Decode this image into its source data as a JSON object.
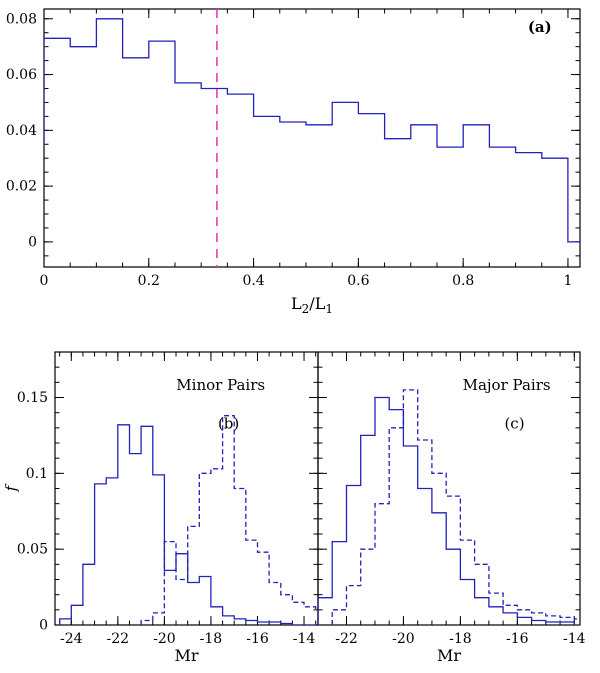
{
  "figure": {
    "background": "#ffffff",
    "frame_color": "#000000",
    "histogram_color": "#2222bb",
    "threshold_color": "#ee3bc0"
  },
  "chart_data": [
    {
      "id": "a",
      "type": "bar",
      "panel_label": "(a)",
      "xlabel": "L_2/L_1",
      "ylabel": "",
      "xlim": [
        0,
        1.023
      ],
      "ylim": [
        -0.009,
        0.0835
      ],
      "xticks": [
        0,
        0.2,
        0.4,
        0.6,
        0.8,
        1
      ],
      "xtick_labels": [
        "0",
        "0.2",
        "0.4",
        "0.6",
        "0.8",
        "1"
      ],
      "xminor": 0.05,
      "yticks": [
        0,
        0.02,
        0.04,
        0.06,
        0.08
      ],
      "ytick_labels": [
        "0",
        "0.02",
        "0.04",
        "0.06",
        "0.08"
      ],
      "yminor": 0.005,
      "grid": false,
      "series": [
        {
          "name": "luminosity-ratio-histogram",
          "style": "solid",
          "color": "#2222bb",
          "bin_start": 0,
          "bin_width": 0.05,
          "start_y": 0.034,
          "values": [
            0.073,
            0.07,
            0.08,
            0.066,
            0.072,
            0.057,
            0.055,
            0.053,
            0.045,
            0.043,
            0.042,
            0.05,
            0.046,
            0.037,
            0.042,
            0.034,
            0.042,
            0.034,
            0.032,
            0.03
          ]
        }
      ],
      "vline": {
        "x": 0.33,
        "color": "#ee3bc0",
        "style": "dashed"
      },
      "annotations": [
        {
          "text": "(a)",
          "fx": 0.925,
          "fy": 0.09,
          "bold": true
        }
      ]
    },
    {
      "id": "b",
      "type": "bar",
      "panel_label": "(b)",
      "xlabel": "Mr",
      "ylabel": "f",
      "xlim": [
        -24.7,
        -13.4
      ],
      "ylim": [
        0,
        0.18
      ],
      "xticks": [
        -24,
        -22,
        -20,
        -18,
        -16,
        -14
      ],
      "xtick_labels": [
        "-24",
        "-22",
        "-20",
        "-18",
        "-16",
        "-14"
      ],
      "xminor": 0.5,
      "yticks": [
        0,
        0.05,
        0.1,
        0.15
      ],
      "ytick_labels": [
        "0",
        "0.05",
        "0.1",
        "0.15"
      ],
      "yminor": 0.01,
      "grid": false,
      "series": [
        {
          "name": "solid-histogram",
          "style": "solid",
          "color": "#2222bb",
          "bin_start": -24.5,
          "bin_width": 0.5,
          "values": [
            0.004,
            0.013,
            0.04,
            0.093,
            0.097,
            0.132,
            0.113,
            0.131,
            0.099,
            0.036,
            0.047,
            0.028,
            0.032,
            0.012,
            0.006,
            0.004,
            0.003,
            0.002,
            0.002,
            0.001
          ]
        },
        {
          "name": "dashed-histogram",
          "style": "dashed",
          "color": "#2222bb",
          "bin_start": -21.0,
          "bin_width": 0.5,
          "values": [
            0.003,
            0.008,
            0.055,
            0.03,
            0.065,
            0.1,
            0.103,
            0.138,
            0.09,
            0.056,
            0.048,
            0.028,
            0.02,
            0.015,
            0.012,
            0.01
          ]
        }
      ],
      "annotations": [
        {
          "text": "Minor Pairs",
          "fx": 0.63,
          "fy": 0.14,
          "bold": false
        },
        {
          "text": "(b)",
          "fx": 0.66,
          "fy": 0.28,
          "bold": false
        }
      ]
    },
    {
      "id": "c",
      "type": "bar",
      "panel_label": "(c)",
      "xlabel": "Mr",
      "ylabel": "",
      "xlim": [
        -23.0,
        -13.8
      ],
      "ylim": [
        0,
        0.18
      ],
      "xticks": [
        -22,
        -20,
        -18,
        -16,
        -14
      ],
      "xtick_labels": [
        "-22",
        "-20",
        "-18",
        "-16",
        "-14"
      ],
      "xminor": 0.5,
      "yticks": [
        0,
        0.05,
        0.1,
        0.15
      ],
      "ytick_labels": [],
      "yminor": 0.01,
      "grid": false,
      "series": [
        {
          "name": "solid-histogram",
          "style": "solid",
          "color": "#2222bb",
          "bin_start": -23.0,
          "bin_width": 0.5,
          "values": [
            0.018,
            0.055,
            0.092,
            0.125,
            0.15,
            0.142,
            0.118,
            0.09,
            0.074,
            0.05,
            0.03,
            0.018,
            0.012,
            0.008,
            0.005,
            0.003,
            0.002,
            0.002
          ]
        },
        {
          "name": "dashed-histogram",
          "style": "dashed",
          "color": "#2222bb",
          "bin_start": -22.5,
          "bin_width": 0.5,
          "values": [
            0.01,
            0.026,
            0.05,
            0.08,
            0.13,
            0.155,
            0.122,
            0.1,
            0.085,
            0.056,
            0.04,
            0.021,
            0.013,
            0.01,
            0.008,
            0.006,
            0.005,
            0.004
          ]
        }
      ],
      "annotations": [
        {
          "text": "Major Pairs",
          "fx": 0.72,
          "fy": 0.14,
          "bold": false
        },
        {
          "text": "(c)",
          "fx": 0.75,
          "fy": 0.28,
          "bold": false
        }
      ]
    }
  ]
}
